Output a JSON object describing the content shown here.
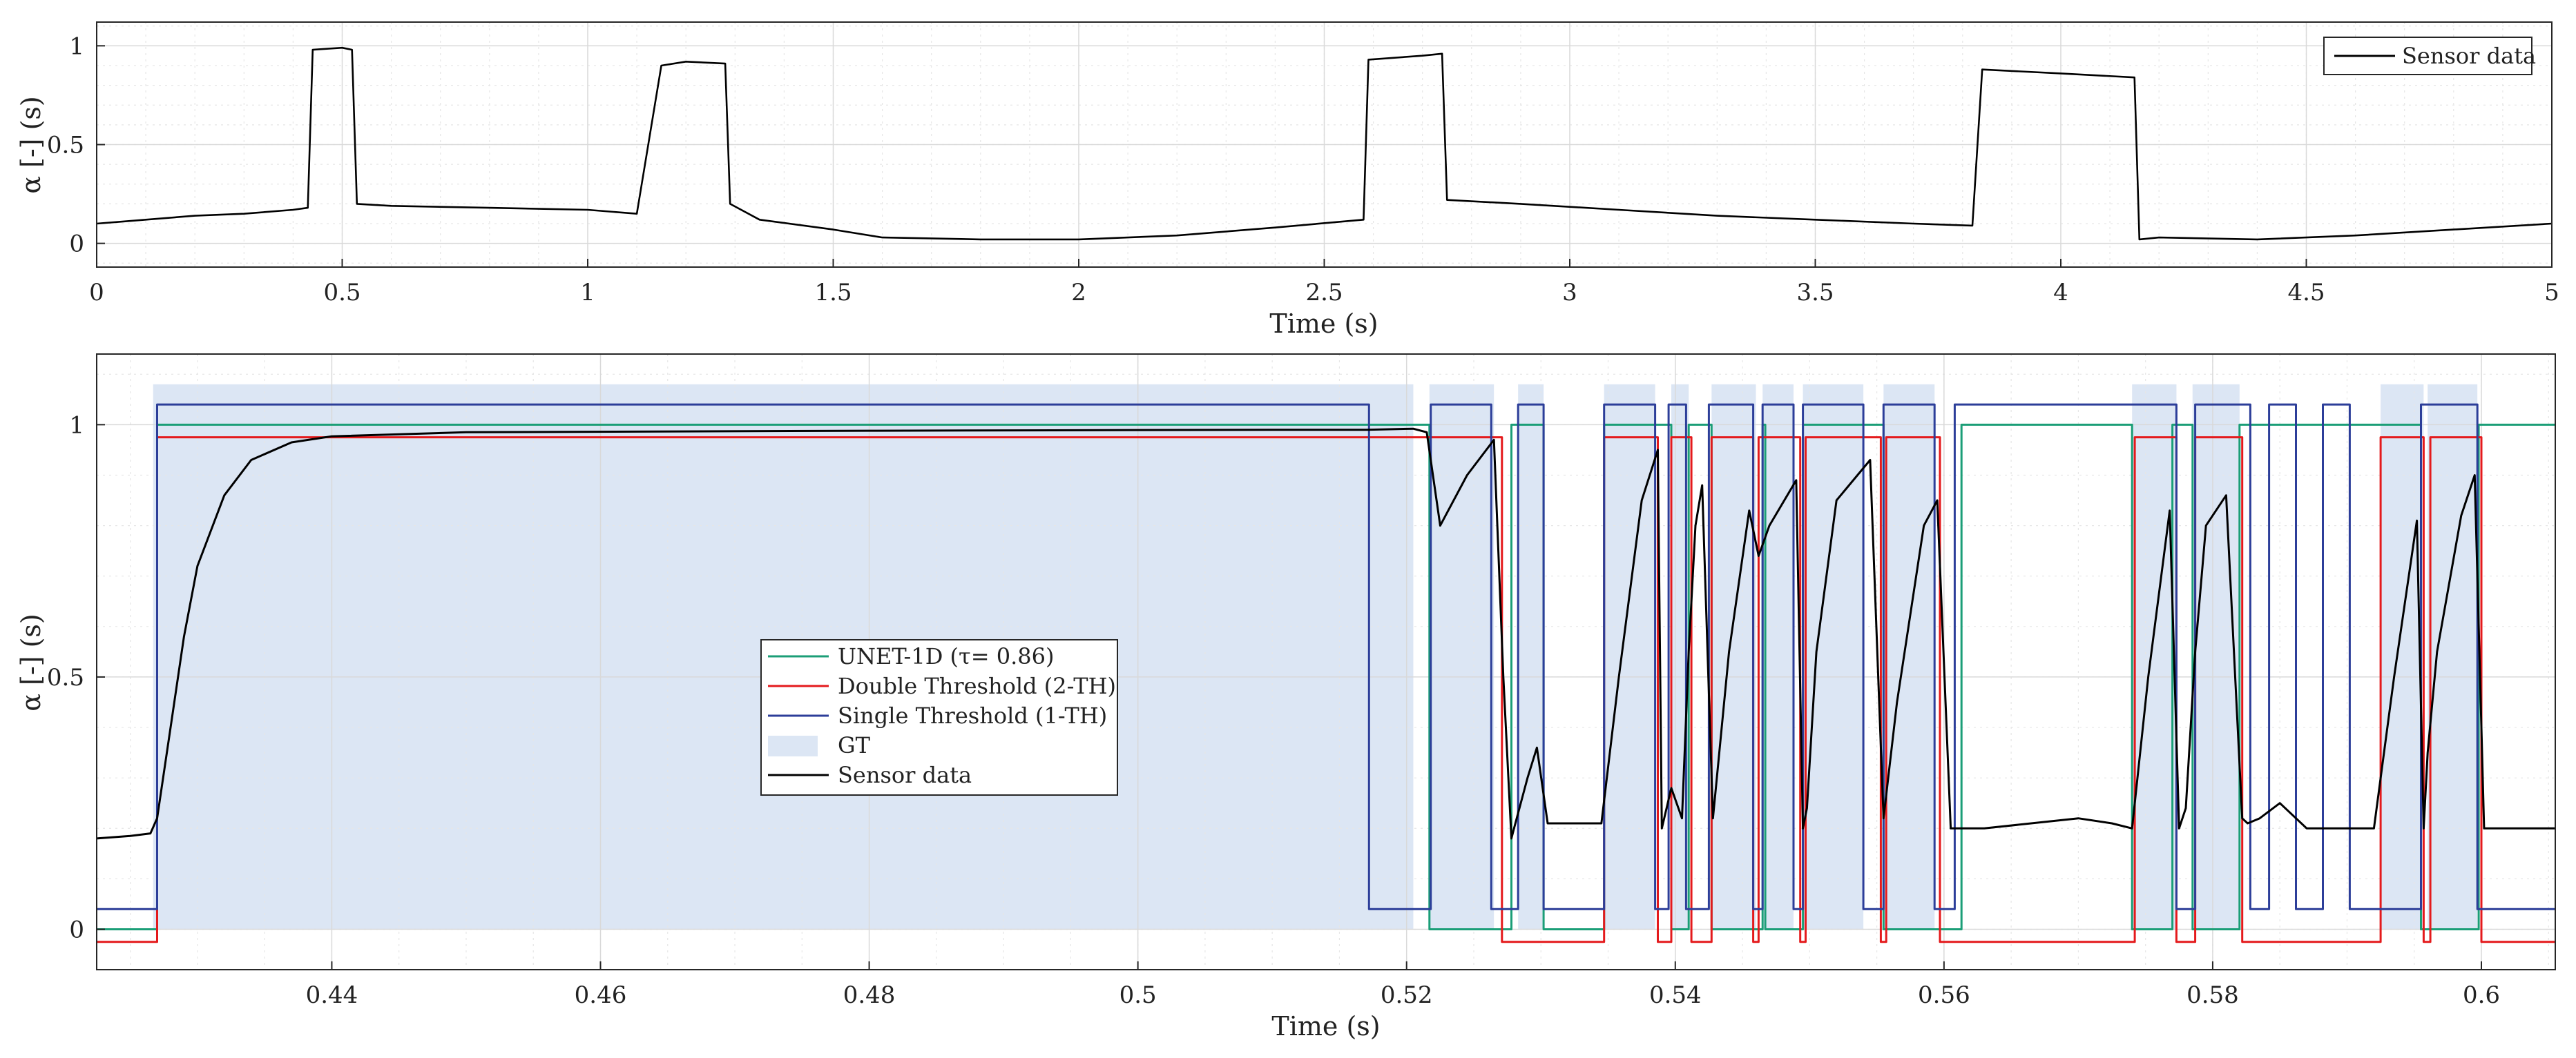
{
  "chart_data": [
    {
      "type": "line",
      "xlabel": "Time (s)",
      "ylabel": "α [-] (s)",
      "xlim": [
        0,
        5
      ],
      "ylim": [
        -0.12,
        1.12
      ],
      "xticks": [
        0,
        0.5,
        1,
        1.5,
        2,
        2.5,
        3,
        3.5,
        4,
        4.5,
        5
      ],
      "xtick_labels": [
        "0",
        "0.5",
        "1",
        "1.5",
        "2",
        "2.5",
        "3",
        "3.5",
        "4",
        "4.5",
        "5"
      ],
      "yticks": [
        0,
        0.5,
        1
      ],
      "ytick_labels": [
        "0",
        "0.5",
        "1"
      ],
      "grid": true,
      "minor_grid": true,
      "legend_position": "top-right",
      "series": [
        {
          "name": "Sensor data",
          "color": "#000000",
          "x": [
            0,
            0.05,
            0.1,
            0.2,
            0.3,
            0.4,
            0.43,
            0.44,
            0.5,
            0.52,
            0.53,
            0.6,
            0.8,
            1.0,
            1.1,
            1.15,
            1.2,
            1.28,
            1.29,
            1.35,
            1.5,
            1.6,
            1.8,
            2.0,
            2.2,
            2.4,
            2.58,
            2.59,
            2.7,
            2.74,
            2.75,
            2.9,
            3.1,
            3.3,
            3.5,
            3.7,
            3.82,
            3.84,
            4.0,
            4.15,
            4.16,
            4.2,
            4.4,
            4.6,
            4.8,
            5.0
          ],
          "y": [
            0.1,
            0.11,
            0.12,
            0.14,
            0.15,
            0.17,
            0.18,
            0.98,
            0.99,
            0.98,
            0.2,
            0.19,
            0.18,
            0.17,
            0.15,
            0.9,
            0.92,
            0.91,
            0.2,
            0.12,
            0.07,
            0.03,
            0.02,
            0.02,
            0.04,
            0.08,
            0.12,
            0.93,
            0.95,
            0.96,
            0.22,
            0.2,
            0.17,
            0.14,
            0.12,
            0.1,
            0.09,
            0.88,
            0.86,
            0.84,
            0.02,
            0.03,
            0.02,
            0.04,
            0.07,
            0.1
          ]
        }
      ]
    },
    {
      "type": "line",
      "xlabel": "Time (s)",
      "ylabel": "α [-] (s)",
      "xlim": [
        0.4225,
        0.6055
      ],
      "ylim": [
        -0.08,
        1.14
      ],
      "xticks": [
        0.44,
        0.46,
        0.48,
        0.5,
        0.52,
        0.54,
        0.56,
        0.58,
        0.6
      ],
      "xtick_labels": [
        "0.44",
        "0.46",
        "0.48",
        "0.5",
        "0.52",
        "0.54",
        "0.56",
        "0.58",
        "0.6"
      ],
      "yticks": [
        0,
        0.5,
        1
      ],
      "ytick_labels": [
        "0",
        "0.5",
        "1"
      ],
      "grid": true,
      "minor_grid": true,
      "legend_position": "center-left",
      "gt_intervals": [
        [
          0.4267,
          0.5205
        ],
        [
          0.5217,
          0.5265
        ],
        [
          0.5283,
          0.5302
        ],
        [
          0.5347,
          0.5385
        ],
        [
          0.5397,
          0.541
        ],
        [
          0.5427,
          0.546
        ],
        [
          0.5465,
          0.5488
        ],
        [
          0.5495,
          0.554
        ],
        [
          0.5555,
          0.5593
        ],
        [
          0.574,
          0.5773
        ],
        [
          0.5785,
          0.582
        ],
        [
          0.5925,
          0.5957
        ],
        [
          0.596,
          0.5997
        ]
      ],
      "series": [
        {
          "name": "UNET-1D (τ= 0.86)",
          "color": "#1b9e77",
          "offset": 0,
          "x": [
            0.4225,
            0.427,
            0.427,
            0.5217,
            0.5217,
            0.5278,
            0.5278,
            0.5302,
            0.5302,
            0.5347,
            0.5347,
            0.5397,
            0.5397,
            0.541,
            0.541,
            0.5427,
            0.5427,
            0.5465,
            0.5465,
            0.5467,
            0.5467,
            0.5495,
            0.5495,
            0.5555,
            0.5555,
            0.5613,
            0.5613,
            0.574,
            0.574,
            0.577,
            0.577,
            0.5785,
            0.5785,
            0.582,
            0.582,
            0.5955,
            0.5955,
            0.5998,
            0.5998,
            0.6055
          ],
          "y": [
            0,
            0,
            1,
            1,
            0,
            0,
            1,
            1,
            0,
            0,
            1,
            1,
            0,
            0,
            1,
            1,
            0,
            0,
            1,
            1,
            0,
            0,
            1,
            1,
            0,
            0,
            1,
            1,
            0,
            0,
            1,
            1,
            0,
            0,
            1,
            1,
            0,
            0,
            1,
            1
          ]
        },
        {
          "name": "Double Threshold (2-TH)",
          "color": "#e41a1c",
          "offset": -0.025,
          "x": [
            0.4225,
            0.427,
            0.427,
            0.5271,
            0.5271,
            0.5347,
            0.5347,
            0.5387,
            0.5387,
            0.5397,
            0.5397,
            0.5412,
            0.5412,
            0.5427,
            0.5427,
            0.5458,
            0.5458,
            0.5462,
            0.5462,
            0.5493,
            0.5493,
            0.5497,
            0.5497,
            0.5553,
            0.5553,
            0.5557,
            0.5557,
            0.5597,
            0.5597,
            0.5742,
            0.5742,
            0.5773,
            0.5773,
            0.5787,
            0.5787,
            0.5822,
            0.5822,
            0.5925,
            0.5925,
            0.5957,
            0.5957,
            0.5962,
            0.5962,
            0.6,
            0.6,
            0.6055
          ],
          "y": [
            0,
            0,
            1,
            1,
            0,
            0,
            1,
            1,
            0,
            0,
            1,
            1,
            0,
            0,
            1,
            1,
            0,
            0,
            1,
            1,
            0,
            0,
            1,
            1,
            0,
            0,
            1,
            1,
            0,
            0,
            1,
            1,
            0,
            0,
            1,
            1,
            0,
            0,
            1,
            1,
            0,
            0,
            1,
            1,
            0,
            0
          ]
        },
        {
          "name": "Single Threshold (1-TH)",
          "color": "#2c3e99",
          "offset": 0.04,
          "x": [
            0.4225,
            0.427,
            0.427,
            0.5172,
            0.5172,
            0.5218,
            0.5218,
            0.5263,
            0.5263,
            0.5283,
            0.5283,
            0.5302,
            0.5302,
            0.5347,
            0.5347,
            0.5385,
            0.5385,
            0.5395,
            0.5395,
            0.5408,
            0.5408,
            0.5425,
            0.5425,
            0.5458,
            0.5458,
            0.5465,
            0.5465,
            0.5488,
            0.5488,
            0.5495,
            0.5495,
            0.554,
            0.554,
            0.5555,
            0.5555,
            0.5593,
            0.5593,
            0.5608,
            0.5608,
            0.5773,
            0.5773,
            0.5787,
            0.5787,
            0.5828,
            0.5828,
            0.5842,
            0.5842,
            0.5862,
            0.5862,
            0.5882,
            0.5882,
            0.5902,
            0.5902,
            0.5955,
            0.5955,
            0.5997,
            0.5997,
            0.6055
          ],
          "y": [
            0,
            0,
            1,
            1,
            0,
            0,
            1,
            1,
            0,
            0,
            1,
            1,
            0,
            0,
            1,
            1,
            0,
            0,
            1,
            1,
            0,
            0,
            1,
            1,
            0,
            0,
            1,
            1,
            0,
            0,
            1,
            1,
            0,
            0,
            1,
            1,
            0,
            0,
            1,
            1,
            0,
            0,
            1,
            1,
            0,
            0,
            1,
            1,
            0,
            0,
            1,
            1,
            0,
            0,
            1,
            1,
            0,
            0
          ]
        },
        {
          "name": "Sensor data",
          "color": "#000000",
          "x": [
            0.4225,
            0.425,
            0.4265,
            0.427,
            0.428,
            0.429,
            0.43,
            0.432,
            0.434,
            0.437,
            0.44,
            0.45,
            0.48,
            0.51,
            0.517,
            0.5205,
            0.5215,
            0.5225,
            0.5245,
            0.5265,
            0.5272,
            0.5278,
            0.528,
            0.529,
            0.5297,
            0.5305,
            0.532,
            0.5345,
            0.5358,
            0.5375,
            0.5387,
            0.539,
            0.5397,
            0.5405,
            0.541,
            0.5415,
            0.542,
            0.5428,
            0.544,
            0.5455,
            0.5462,
            0.547,
            0.549,
            0.5495,
            0.5498,
            0.5505,
            0.552,
            0.5545,
            0.5555,
            0.5565,
            0.5585,
            0.5595,
            0.5605,
            0.563,
            0.57,
            0.5725,
            0.574,
            0.5752,
            0.5768,
            0.5775,
            0.578,
            0.5787,
            0.5795,
            0.581,
            0.5822,
            0.5826,
            0.5835,
            0.585,
            0.587,
            0.592,
            0.5935,
            0.5952,
            0.5957,
            0.596,
            0.5967,
            0.5985,
            0.5995,
            0.6002,
            0.6055
          ],
          "y": [
            0.18,
            0.185,
            0.19,
            0.22,
            0.4,
            0.58,
            0.72,
            0.86,
            0.93,
            0.965,
            0.977,
            0.985,
            0.988,
            0.99,
            0.99,
            0.992,
            0.985,
            0.8,
            0.9,
            0.97,
            0.5,
            0.18,
            0.2,
            0.3,
            0.36,
            0.21,
            0.21,
            0.21,
            0.5,
            0.85,
            0.95,
            0.2,
            0.28,
            0.22,
            0.55,
            0.8,
            0.88,
            0.22,
            0.55,
            0.83,
            0.74,
            0.8,
            0.89,
            0.2,
            0.24,
            0.55,
            0.85,
            0.93,
            0.22,
            0.45,
            0.8,
            0.85,
            0.2,
            0.2,
            0.22,
            0.21,
            0.2,
            0.5,
            0.83,
            0.2,
            0.24,
            0.55,
            0.8,
            0.86,
            0.22,
            0.21,
            0.22,
            0.25,
            0.2,
            0.2,
            0.5,
            0.81,
            0.2,
            0.35,
            0.55,
            0.82,
            0.9,
            0.2,
            0.2
          ]
        }
      ]
    }
  ],
  "legends": {
    "top": [
      {
        "label": "Sensor data",
        "color": "#000000",
        "kind": "line"
      }
    ],
    "bottom": [
      {
        "label": "UNET-1D (τ= 0.86)",
        "color": "#1b9e77",
        "kind": "line"
      },
      {
        "label": "Double Threshold (2-TH)",
        "color": "#e41a1c",
        "kind": "line"
      },
      {
        "label": "Single Threshold (1-TH)",
        "color": "#2c3e99",
        "kind": "line"
      },
      {
        "label": "GT",
        "color": "#dce6f4",
        "kind": "patch"
      },
      {
        "label": "Sensor data",
        "color": "#000000",
        "kind": "line"
      }
    ]
  },
  "colors": {
    "gt_fill": "#dce6f4",
    "axes_background": "#ffffff"
  }
}
